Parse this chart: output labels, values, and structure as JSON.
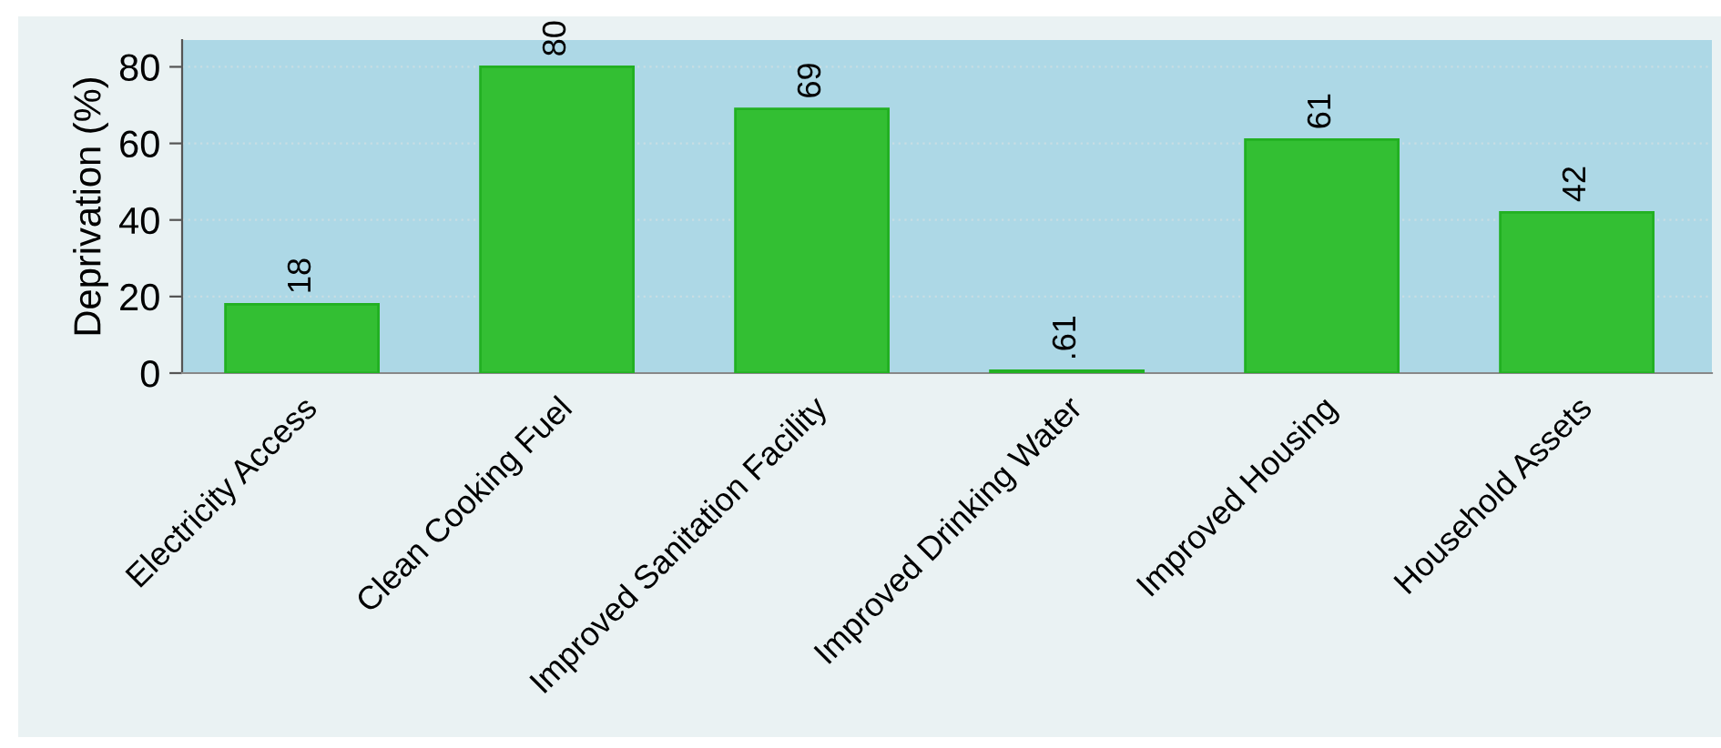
{
  "chart_data": {
    "type": "bar",
    "ylabel": "Deprivation (%)",
    "categories": [
      "Electricity Access",
      "Clean Cooking Fuel",
      "Improved Sanitation Facility",
      "Improved Drinking Water",
      "Improved Housing",
      "Household Assets"
    ],
    "values": [
      18,
      80,
      69,
      0.61,
      61,
      42
    ],
    "value_labels": [
      "18",
      "80",
      "69",
      ".61",
      "61",
      "42"
    ],
    "color": "#33bf33",
    "ylim": [
      0,
      87
    ],
    "yticks": [
      0,
      20,
      40,
      60,
      80
    ],
    "grid": "y",
    "legend": false
  }
}
